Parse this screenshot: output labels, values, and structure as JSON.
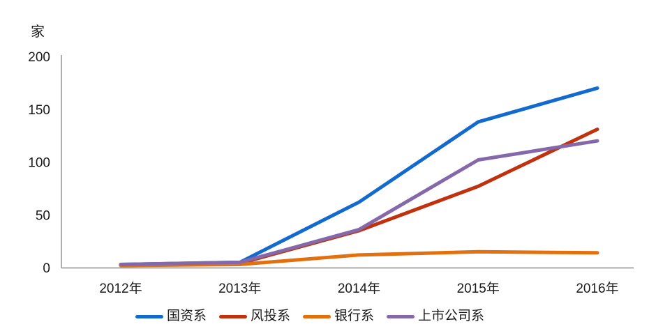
{
  "chart_data": {
    "type": "line",
    "title": "",
    "ylabel": "家",
    "xlabel": "",
    "categories": [
      "2012年",
      "2013年",
      "2014年",
      "2015年",
      "2016年"
    ],
    "series": [
      {
        "name": "国资系",
        "color": "#1269CE",
        "values": [
          3,
          5,
          62,
          138,
          170
        ]
      },
      {
        "name": "风投系",
        "color": "#C0310E",
        "values": [
          2,
          4,
          35,
          77,
          131
        ]
      },
      {
        "name": "银行系",
        "color": "#E2700F",
        "values": [
          2,
          3,
          12,
          15,
          14
        ]
      },
      {
        "name": "上市公司系",
        "color": "#8568A9",
        "values": [
          3,
          5,
          36,
          102,
          120
        ]
      }
    ],
    "ylim": [
      0,
      200
    ],
    "yticks": [
      0,
      50,
      100,
      150,
      200
    ],
    "grid": false,
    "legend_position": "bottom",
    "axis_color": "#8C8C8C",
    "text_color": "#1A1A1A"
  }
}
